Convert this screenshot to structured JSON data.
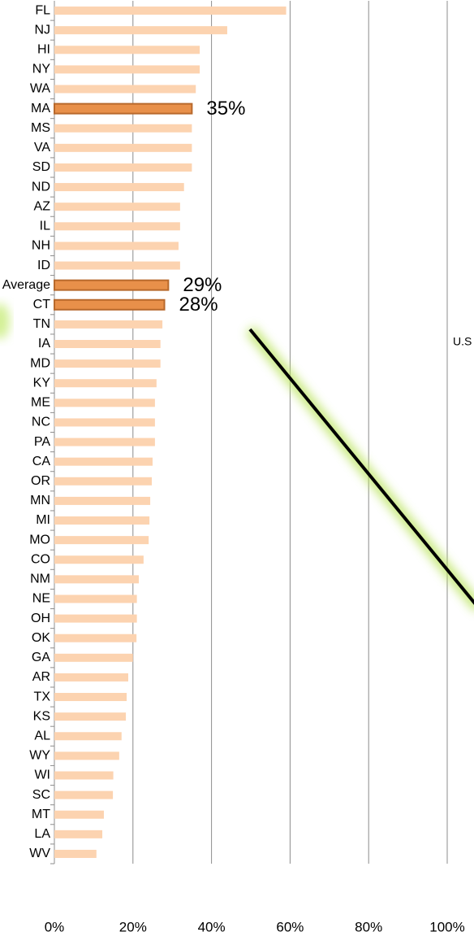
{
  "chart_data": {
    "type": "bar",
    "orientation": "horizontal",
    "categories": [
      "FL",
      "NJ",
      "HI",
      "NY",
      "WA",
      "MA",
      "MS",
      "VA",
      "SD",
      "ND",
      "AZ",
      "IL",
      "NH",
      "ID",
      "U.S. Average",
      "CT",
      "TN",
      "IA",
      "MD",
      "KY",
      "ME",
      "NC",
      "PA",
      "CA",
      "OR",
      "MN",
      "MI",
      "MO",
      "CO",
      "NM",
      "NE",
      "OH",
      "OK",
      "GA",
      "AR",
      "TX",
      "KS",
      "AL",
      "WY",
      "WI",
      "SC",
      "MT",
      "LA",
      "WV"
    ],
    "values": [
      59,
      44,
      37,
      37,
      36,
      35,
      35,
      35,
      35,
      33,
      32,
      32,
      31.6,
      32,
      29,
      28,
      27.5,
      27,
      27,
      26,
      25.6,
      25.6,
      25.6,
      25,
      24.8,
      24.4,
      24.2,
      24,
      22.7,
      21.5,
      21,
      21,
      20.9,
      20,
      18.8,
      18.4,
      18.2,
      17.1,
      16.5,
      15,
      14.9,
      12.6,
      12.2,
      10.7
    ],
    "value_labels": [
      null,
      null,
      null,
      null,
      null,
      "35%",
      null,
      null,
      null,
      null,
      null,
      null,
      null,
      null,
      "29%",
      "28%",
      null,
      null,
      null,
      null,
      null,
      null,
      null,
      null,
      null,
      null,
      null,
      null,
      null,
      null,
      null,
      null,
      null,
      null,
      null,
      null,
      null,
      null,
      null,
      null,
      null,
      null,
      null,
      null
    ],
    "color": "#fcd3b0",
    "highlight_color": "#e8904a",
    "highlight_stroke": "#b8692c",
    "xlim": [
      0,
      100
    ],
    "xticks": [
      {
        "value": 0,
        "label": "0%"
      },
      {
        "value": 20,
        "label": "20%"
      },
      {
        "value": 40,
        "label": "40%"
      },
      {
        "value": 60,
        "label": "60%"
      },
      {
        "value": 80,
        "label": "80%"
      },
      {
        "value": 100,
        "label": "100%"
      }
    ],
    "grid": true,
    "annotation": "U.S"
  }
}
